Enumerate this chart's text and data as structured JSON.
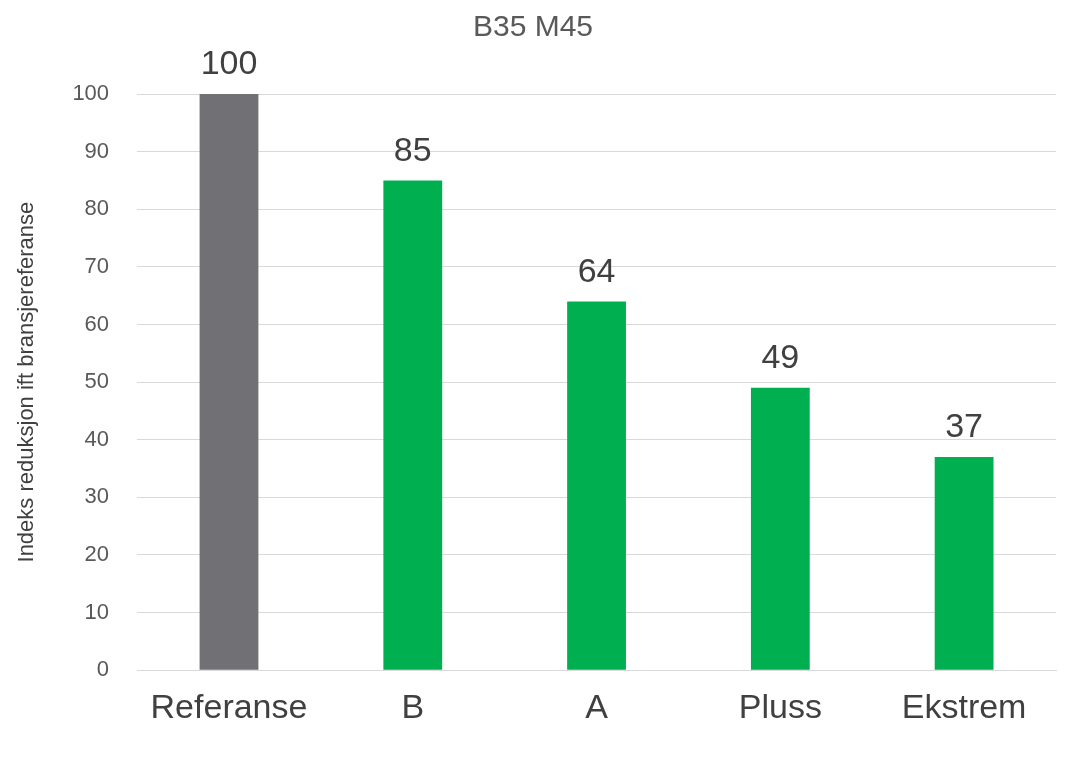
{
  "chart_data": {
    "type": "bar",
    "title": "B35 M45",
    "ylabel": "Indeks reduksjon ift bransjereferanse",
    "categories": [
      "Referanse",
      "B",
      "A",
      "Pluss",
      "Ekstrem"
    ],
    "values": [
      100,
      85,
      64,
      49,
      37
    ],
    "colors": [
      "#717074",
      "#00b050",
      "#00b050",
      "#00b050",
      "#00b050"
    ],
    "ylim": [
      0,
      100
    ],
    "yticks": [
      0,
      10,
      20,
      30,
      40,
      50,
      60,
      70,
      80,
      90,
      100
    ],
    "grid": "y",
    "data_labels": true
  }
}
